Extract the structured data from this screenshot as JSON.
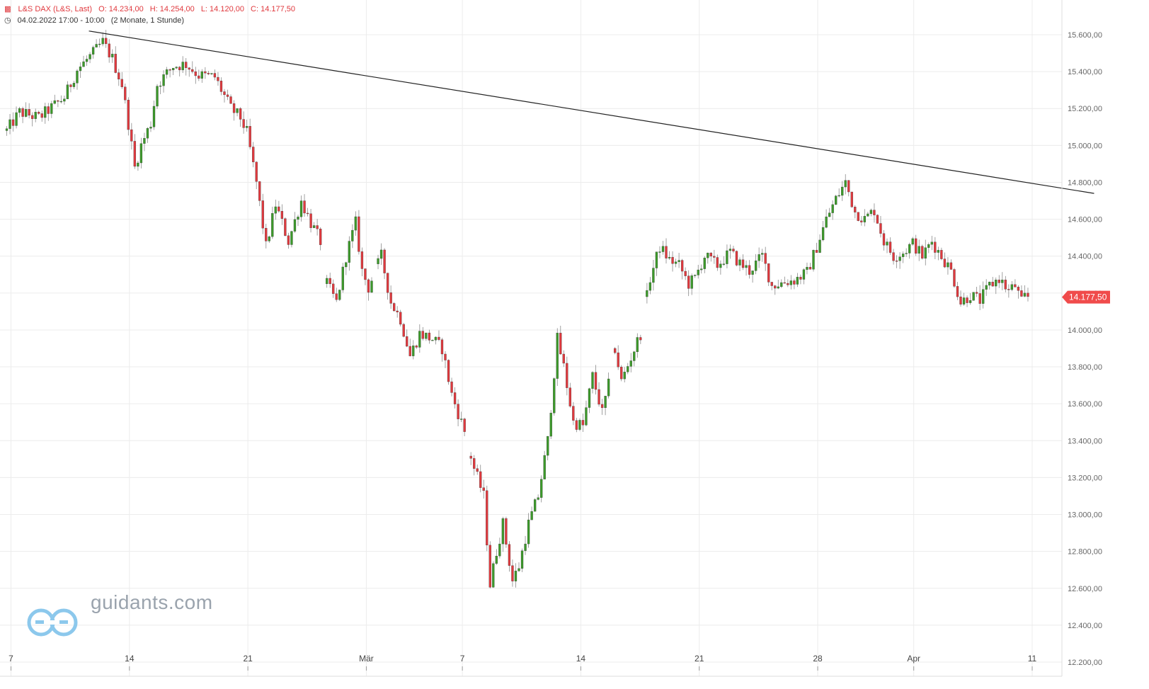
{
  "header": {
    "instrument": "L&S DAX (L&S, Last)",
    "open": "O: 14.234,00",
    "high": "H: 14.254,00",
    "low": "L: 14.120,00",
    "close": "C: 14.177,50",
    "period": "04.02.2022 17:00 - 10:00",
    "range": "(2 Monate, 1 Stunde)"
  },
  "colors": {
    "up": "#3c9a2a",
    "down": "#e0393e",
    "trendline": "#222222",
    "grid": "#ececec",
    "badge": "#f04b4b"
  },
  "watermark": {
    "text": "guidants.com"
  },
  "last_price_label": "14.177,50",
  "chart_data": {
    "type": "candlestick",
    "xlabel": "",
    "ylabel": "",
    "ylim": [
      12200,
      15800
    ],
    "y_ticks": [
      "15.600,00",
      "15.400,00",
      "15.200,00",
      "15.000,00",
      "14.800,00",
      "14.600,00",
      "14.400,00",
      "14.200,00",
      "14.000,00",
      "13.800,00",
      "13.600,00",
      "13.400,00",
      "13.200,00",
      "13.000,00",
      "12.800,00",
      "12.600,00",
      "12.400,00",
      "12.200,00"
    ],
    "y_tick_values": [
      15600,
      15400,
      15200,
      15000,
      14800,
      14600,
      14400,
      14200,
      14000,
      13800,
      13600,
      13400,
      13200,
      13000,
      12800,
      12600,
      12400,
      12200
    ],
    "x_ticks": [
      "7",
      "14",
      "21",
      "Mär",
      "7",
      "14",
      "21",
      "28",
      "Apr",
      "11"
    ],
    "x_tick_index": [
      1,
      38,
      75,
      112,
      142,
      179,
      216,
      253,
      283,
      320
    ],
    "grid": true,
    "close_path": [
      [
        0,
        15080
      ],
      [
        4,
        15180
      ],
      [
        10,
        15150
      ],
      [
        18,
        15260
      ],
      [
        22,
        15410
      ],
      [
        27,
        15500
      ],
      [
        30,
        15560
      ],
      [
        33,
        15470
      ],
      [
        36,
        15330
      ],
      [
        38,
        15120
      ],
      [
        40,
        14880
      ],
      [
        42,
        15000
      ],
      [
        45,
        15120
      ],
      [
        47,
        15330
      ],
      [
        52,
        15430
      ],
      [
        56,
        15440
      ],
      [
        60,
        15380
      ],
      [
        65,
        15370
      ],
      [
        70,
        15200
      ],
      [
        73,
        15150
      ],
      [
        75,
        15070
      ],
      [
        78,
        14800
      ],
      [
        81,
        14450
      ],
      [
        84,
        14680
      ],
      [
        88,
        14480
      ],
      [
        92,
        14700
      ],
      [
        95,
        14580
      ],
      [
        98,
        14480
      ],
      [
        100,
        14250
      ],
      [
        103,
        14150
      ],
      [
        106,
        14400
      ],
      [
        109,
        14580
      ],
      [
        111,
        14320
      ],
      [
        113,
        14230
      ],
      [
        117,
        14400
      ],
      [
        120,
        14150
      ],
      [
        123,
        14060
      ],
      [
        126,
        13860
      ],
      [
        129,
        13980
      ],
      [
        133,
        13950
      ],
      [
        136,
        13900
      ],
      [
        139,
        13650
      ],
      [
        143,
        13450
      ],
      [
        146,
        13250
      ],
      [
        149,
        13100
      ],
      [
        151,
        12620
      ],
      [
        153,
        12800
      ],
      [
        155,
        12950
      ],
      [
        158,
        12640
      ],
      [
        160,
        12720
      ],
      [
        163,
        12950
      ],
      [
        166,
        13100
      ],
      [
        169,
        13400
      ],
      [
        172,
        13950
      ],
      [
        174,
        13800
      ],
      [
        177,
        13500
      ],
      [
        180,
        13480
      ],
      [
        183,
        13750
      ],
      [
        186,
        13550
      ],
      [
        188,
        13700
      ],
      [
        190,
        13900
      ],
      [
        192,
        13720
      ],
      [
        195,
        13850
      ],
      [
        198,
        13980
      ],
      [
        201,
        14280
      ],
      [
        204,
        14450
      ],
      [
        207,
        14380
      ],
      [
        210,
        14350
      ],
      [
        213,
        14250
      ],
      [
        215,
        14280
      ],
      [
        218,
        14400
      ],
      [
        222,
        14350
      ],
      [
        226,
        14420
      ],
      [
        229,
        14360
      ],
      [
        232,
        14320
      ],
      [
        236,
        14400
      ],
      [
        239,
        14240
      ],
      [
        243,
        14260
      ],
      [
        246,
        14270
      ],
      [
        250,
        14310
      ],
      [
        253,
        14450
      ],
      [
        256,
        14600
      ],
      [
        259,
        14710
      ],
      [
        262,
        14800
      ],
      [
        265,
        14640
      ],
      [
        268,
        14600
      ],
      [
        271,
        14650
      ],
      [
        274,
        14480
      ],
      [
        277,
        14400
      ],
      [
        280,
        14420
      ],
      [
        283,
        14470
      ],
      [
        286,
        14400
      ],
      [
        289,
        14480
      ],
      [
        292,
        14400
      ],
      [
        295,
        14320
      ],
      [
        298,
        14150
      ],
      [
        301,
        14190
      ],
      [
        304,
        14160
      ],
      [
        307,
        14240
      ],
      [
        310,
        14280
      ],
      [
        313,
        14210
      ],
      [
        315,
        14240
      ],
      [
        317,
        14150
      ],
      [
        318,
        14178
      ]
    ],
    "gaps": [
      [
        98,
        100
      ],
      [
        114,
        116
      ],
      [
        143,
        145
      ],
      [
        188,
        190
      ],
      [
        198,
        200
      ]
    ],
    "n_candles": 320,
    "trendline": [
      [
        26,
        15620
      ],
      [
        340,
        14740
      ]
    ],
    "last": 14177.5
  }
}
